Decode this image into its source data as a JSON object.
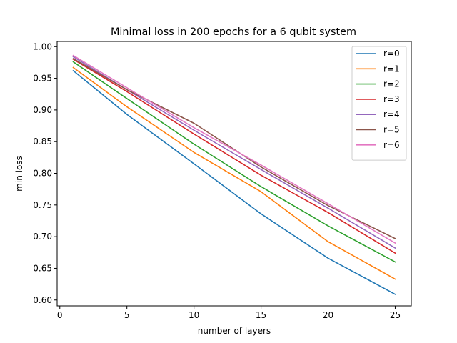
{
  "chart_data": {
    "type": "line",
    "title": "Minimal loss in 200 epochs for a 6 qubit system",
    "xlabel": "number of layers",
    "ylabel": "min loss",
    "xlim": [
      -0.2,
      26.2
    ],
    "ylim": [
      0.5907,
      1.0082
    ],
    "xticks": [
      0,
      5,
      10,
      15,
      20,
      25
    ],
    "xtick_labels": [
      "0",
      "5",
      "10",
      "15",
      "20",
      "25"
    ],
    "yticks": [
      0.6,
      0.65,
      0.7,
      0.75,
      0.8,
      0.85,
      0.9,
      0.95,
      1.0
    ],
    "ytick_labels": [
      "0.60",
      "0.65",
      "0.70",
      "0.75",
      "0.80",
      "0.85",
      "0.90",
      "0.95",
      "1.00"
    ],
    "grid": false,
    "legend_position": "top-right",
    "x": [
      1,
      5,
      10,
      15,
      20,
      25
    ],
    "series": [
      {
        "name": "r=0",
        "color": "#1f77b4",
        "values": [
          0.962,
          0.893,
          0.815,
          0.736,
          0.666,
          0.609
        ]
      },
      {
        "name": "r=1",
        "color": "#ff7f0e",
        "values": [
          0.967,
          0.905,
          0.833,
          0.771,
          0.692,
          0.633
        ]
      },
      {
        "name": "r=2",
        "color": "#2ca02c",
        "values": [
          0.976,
          0.918,
          0.846,
          0.779,
          0.717,
          0.66
        ]
      },
      {
        "name": "r=3",
        "color": "#d62728",
        "values": [
          0.98,
          0.929,
          0.862,
          0.797,
          0.738,
          0.674
        ]
      },
      {
        "name": "r=4",
        "color": "#9467bd",
        "values": [
          0.984,
          0.932,
          0.868,
          0.806,
          0.745,
          0.682
        ]
      },
      {
        "name": "r=5",
        "color": "#8c564b",
        "values": [
          0.981,
          0.932,
          0.879,
          0.81,
          0.749,
          0.697
        ]
      },
      {
        "name": "r=6",
        "color": "#e377c2",
        "values": [
          0.986,
          0.935,
          0.872,
          0.813,
          0.752,
          0.69
        ]
      }
    ]
  }
}
